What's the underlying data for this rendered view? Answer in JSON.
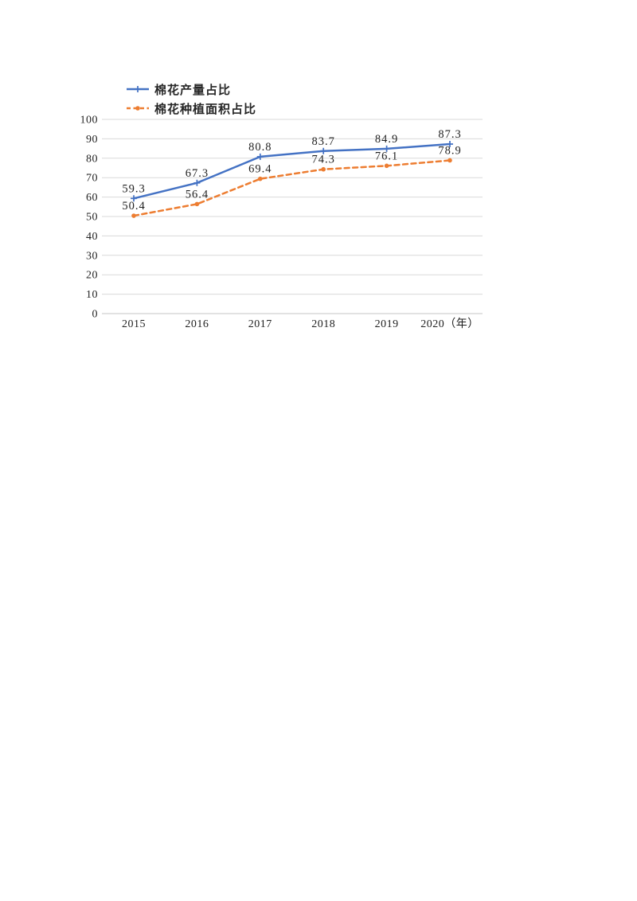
{
  "panel": {
    "background": "#ffffff"
  },
  "chart_data": {
    "type": "line",
    "title": "",
    "categories": [
      "2015",
      "2016",
      "2017",
      "2018",
      "2019",
      "2020（年）"
    ],
    "series": [
      {
        "name": "棉花产量占比",
        "color": "#4472c4",
        "line_style": "solid",
        "marker": "plus",
        "values": [
          59.3,
          67.3,
          80.8,
          83.7,
          84.9,
          87.3
        ],
        "data_labels": [
          "59.3",
          "67.3",
          "80.8",
          "83.7",
          "84.9",
          "87.3"
        ]
      },
      {
        "name": "棉花种植面积占比",
        "color": "#ed7d31",
        "line_style": "dashed",
        "marker": "dot",
        "values": [
          50.4,
          56.4,
          69.4,
          74.3,
          76.1,
          78.9
        ],
        "data_labels": [
          "50.4",
          "56.4",
          "69.4",
          "74.3",
          "76.1",
          "78.9"
        ]
      }
    ],
    "xlabel": "",
    "ylabel": "",
    "ylim": [
      0,
      100
    ],
    "yticks": [
      0,
      10,
      20,
      30,
      40,
      50,
      60,
      70,
      80,
      90,
      100
    ],
    "grid": "horizontal-only",
    "gridline_color": "#d9d9d9",
    "baseline_color": "#c6c6c6",
    "axis_text_color": "#1f1f1f",
    "data_label_color": "#1f1f1f",
    "legend_position": "top-left"
  }
}
